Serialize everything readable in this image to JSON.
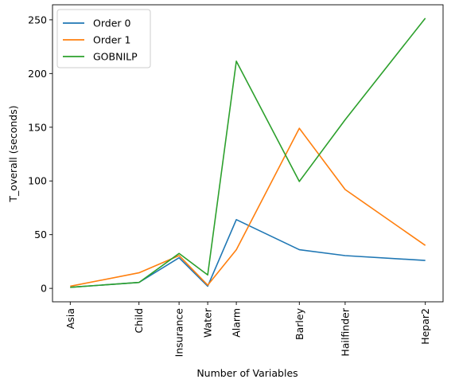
{
  "chart_data": {
    "type": "line",
    "xlabel": "Number of Variables",
    "ylabel": "T_overall (seconds)",
    "legend_position": "top-left",
    "grid": false,
    "x_scale": "number of variables",
    "categories": [
      "Asia",
      "Child",
      "Insurance",
      "Water",
      "Alarm",
      "Barley",
      "Hailfinder",
      "Hepar2"
    ],
    "x": [
      8,
      20,
      27,
      32,
      37,
      48,
      56,
      70
    ],
    "xlim": [
      4.9,
      73.1
    ],
    "ylim": [
      -12.5,
      264
    ],
    "yticks": [
      0,
      50,
      100,
      150,
      200,
      250
    ],
    "series": [
      {
        "name": "Order 0",
        "color": "#1f77b4",
        "values": [
          1.0,
          5.5,
          28.5,
          2.0,
          64.0,
          36.0,
          30.5,
          26.0
        ]
      },
      {
        "name": "Order 1",
        "color": "#ff7f0e",
        "values": [
          2.0,
          14.5,
          30.5,
          3.0,
          36.0,
          149.0,
          92.0,
          40.0
        ]
      },
      {
        "name": "GOBNILP",
        "color": "#2ca02c",
        "values": [
          1.0,
          5.5,
          32.5,
          12.5,
          211.5,
          99.5,
          157.0,
          251.5
        ]
      }
    ]
  }
}
